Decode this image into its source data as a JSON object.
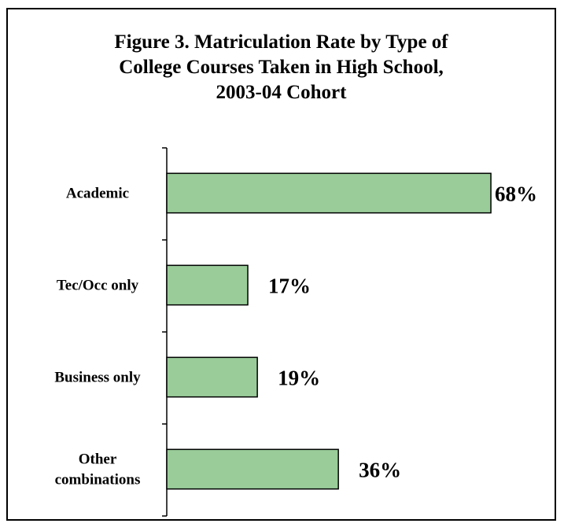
{
  "chart_data": {
    "type": "bar",
    "orientation": "horizontal",
    "title": "Figure 3. Matriculation Rate by Type of College Courses Taken in High School, 2003-04 Cohort",
    "title_lines": [
      "Figure 3. Matriculation Rate by Type of",
      "College Courses Taken in High School,",
      "2003-04 Cohort"
    ],
    "categories": [
      "Academic",
      "Tec/Occ only",
      "Business only",
      "Other combinations"
    ],
    "category_label_lines": [
      [
        "Academic"
      ],
      [
        "Tec/Occ only"
      ],
      [
        "Business only"
      ],
      [
        "Other",
        "combinations"
      ]
    ],
    "values": [
      68,
      17,
      19,
      36
    ],
    "data_labels": [
      "68%",
      "17%",
      "19%",
      "36%"
    ],
    "xlim": [
      0,
      70
    ],
    "xlabel": "",
    "ylabel": "",
    "grid": false,
    "legend": "none",
    "bar_color": "#99cc99",
    "bar_border_color": "#000000"
  }
}
